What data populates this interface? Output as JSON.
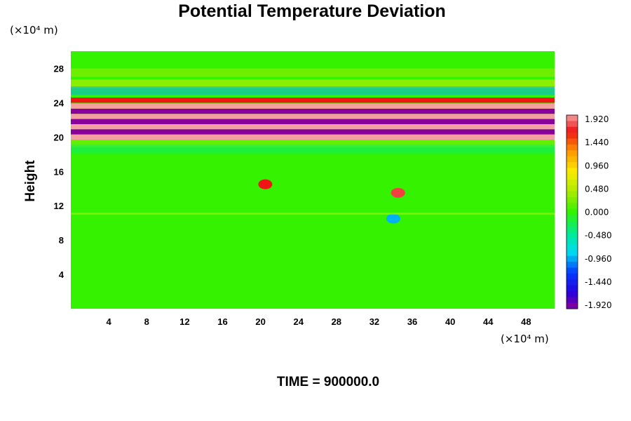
{
  "chart_data": {
    "type": "heatmap",
    "title": "Potential Temperature Deviation",
    "xlabel": "",
    "ylabel": "Height",
    "x_unit": "(×10⁴ m)",
    "y_unit": "(×10⁴ m)",
    "xlim": [
      0,
      51
    ],
    "ylim": [
      0,
      30
    ],
    "x_ticks": [
      4,
      8,
      12,
      16,
      20,
      24,
      28,
      32,
      36,
      40,
      44,
      48
    ],
    "y_ticks": [
      4,
      8,
      12,
      16,
      20,
      24,
      28
    ],
    "colorbar": {
      "range": [
        -1.92,
        1.92
      ],
      "levels": 33,
      "tick_labels": [
        "1.920",
        "1.440",
        "0.960",
        "0.480",
        "0.000",
        "-0.480",
        "-0.960",
        "-1.440",
        "-1.920"
      ]
    },
    "bands": [
      {
        "y": 24.3,
        "value": 1.6
      },
      {
        "y": 23.6,
        "value": 2.0
      },
      {
        "y": 23.0,
        "value": -2.0
      },
      {
        "y": 22.4,
        "value": 2.0
      },
      {
        "y": 21.8,
        "value": -2.0
      },
      {
        "y": 21.2,
        "value": 2.0
      },
      {
        "y": 20.6,
        "value": -2.0
      },
      {
        "y": 20.0,
        "value": 2.0
      }
    ],
    "features": [
      {
        "x": 20.5,
        "y": 14.5,
        "value": 1.6
      },
      {
        "x": 34.5,
        "y": 13.5,
        "value": 1.7
      },
      {
        "x": 34.0,
        "y": 10.5,
        "value": -0.9
      }
    ],
    "annotation": "TIME = 900000.0"
  },
  "colors": {
    "background": "#34f200",
    "max": "#f4a0a0",
    "min": "#8a009a"
  }
}
